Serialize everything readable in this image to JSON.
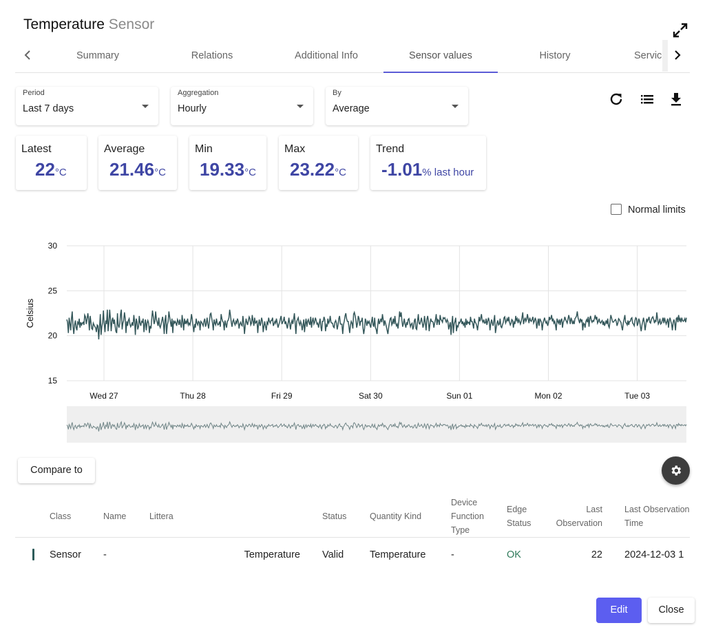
{
  "header": {
    "title": "Temperature",
    "subtitle": "Sensor"
  },
  "icons": {
    "expand": "expand-icon",
    "refresh": "refresh-icon",
    "list": "list-icon",
    "download": "download-icon",
    "settings": "gear-icon",
    "prev": "chevron-left-icon",
    "next": "chevron-right-icon"
  },
  "tabs": [
    {
      "label": "Summary",
      "active": false
    },
    {
      "label": "Relations",
      "active": false
    },
    {
      "label": "Additional Info",
      "active": false
    },
    {
      "label": "Sensor values",
      "active": true
    },
    {
      "label": "History",
      "active": false
    },
    {
      "label": "Service",
      "active": false
    }
  ],
  "filters": {
    "period": {
      "label": "Period",
      "value": "Last 7 days"
    },
    "aggregation": {
      "label": "Aggregation",
      "value": "Hourly"
    },
    "by": {
      "label": "By",
      "value": "Average"
    }
  },
  "stats": [
    {
      "label": "Latest",
      "value": "22",
      "unit": "°C"
    },
    {
      "label": "Average",
      "value": "21.46",
      "unit": "°C"
    },
    {
      "label": "Min",
      "value": "19.33",
      "unit": "°C"
    },
    {
      "label": "Max",
      "value": "23.22",
      "unit": "°C"
    },
    {
      "label": "Trend",
      "value": "-1.01",
      "unit": "% last hour"
    }
  ],
  "normal_limits": {
    "label": "Normal limits",
    "checked": false
  },
  "colors": {
    "accent": "#5c5ef0",
    "stat_value": "#3f46a4",
    "line": "#34575a",
    "ok": "#2f7a5a"
  },
  "chart_data": {
    "type": "line",
    "title": "",
    "xlabel": "",
    "ylabel": "Celsius",
    "ylim": [
      15,
      30
    ],
    "yticks": [
      15,
      20,
      25,
      30
    ],
    "xtick_labels": [
      "Wed 27",
      "Thu 28",
      "Fri 29",
      "Sat 30",
      "Sun 01",
      "Mon 02",
      "Tue 03"
    ],
    "grid": true,
    "series": [
      {
        "values": [
          21.8,
          21.5,
          20.3,
          22.0,
          21.4,
          20.6,
          21.9,
          22.7,
          21.0,
          20.2,
          21.2,
          21.7,
          20.9,
          20.6,
          21.5,
          21.3,
          21.9,
          20.9,
          21.5,
          21.2,
          21.4,
          21.5,
          21.2,
          22.3,
          22.1,
          21.3,
          21.8,
          22.5,
          21.9,
          20.6,
          22.2,
          21.5,
          20.8,
          20.7,
          21.4,
          21.2,
          21.0,
          20.9,
          20.4,
          21.2,
          21.1,
          19.6,
          20.9,
          22.4,
          20.1,
          21.0,
          21.5,
          22.8,
          21.4,
          20.4,
          21.7,
          21.3,
          22.9,
          20.5,
          21.4,
          22.9,
          21.9,
          20.5,
          21.7,
          22.0,
          21.3,
          21.8,
          21.1,
          20.5,
          20.3,
          22.5,
          21.2,
          20.9,
          21.4,
          22.4,
          22.9,
          20.7,
          21.4,
          21.7,
          22.6,
          21.9,
          20.3,
          21.6,
          21.1,
          21.7,
          21.9,
          21.3,
          21.0,
          21.2,
          21.5,
          21.1,
          22.3,
          21.6,
          20.1,
          21.9,
          21.6,
          20.7,
          21.0,
          22.2,
          21.4,
          21.1,
          21.6,
          21.5,
          21.9,
          20.4,
          21.3,
          21.8,
          20.6,
          21.4,
          21.7,
          21.4,
          20.3,
          21.1,
          20.8,
          21.9,
          22.8,
          22.1,
          21.3,
          21.6,
          22.7,
          21.8,
          21.5,
          21.1,
          22.0,
          21.1,
          20.9,
          21.3,
          21.7,
          22.1,
          21.4,
          20.2,
          21.7,
          22.3,
          20.2,
          21.2,
          21.6,
          22.7,
          22.1,
          21.5,
          21.0,
          21.9,
          20.3,
          21.7,
          21.4,
          21.6,
          21.4,
          21.1,
          21.8,
          21.6,
          21.2,
          21.8,
          21.3,
          20.9,
          22.3,
          21.5,
          20.6,
          21.9,
          21.3,
          21.6,
          21.4,
          21.9,
          21.2,
          21.4,
          21.2,
          21.6,
          22.4,
          21.8,
          21.1,
          20.4,
          21.3,
          20.9,
          21.9,
          21.4,
          21.2,
          21.6,
          21.5,
          20.6,
          21.6,
          21.5,
          21.3,
          21.1,
          21.6,
          21.9,
          21.0,
          21.3,
          22.0,
          21.3,
          20.8,
          21.6,
          22.4,
          22.5,
          21.9,
          21.4,
          20.6,
          21.8,
          21.4,
          21.2,
          21.9,
          21.4,
          21.2,
          21.3,
          21.6,
          21.0,
          22.4,
          21.9,
          21.6,
          21.5,
          20.6,
          21.7,
          21.3,
          20.9,
          21.6,
          21.7,
          22.0,
          22.9,
          22.3,
          21.5,
          21.0,
          21.6,
          21.8,
          21.4,
          21.2,
          21.6,
          21.4,
          21.9,
          21.6,
          20.8,
          21.3,
          21.5,
          21.2,
          21.1,
          22.2,
          21.4,
          20.2,
          21.1,
          21.9,
          21.5,
          21.2,
          21.7,
          22.1,
          21.9,
          21.2,
          21.4,
          22.3,
          21.6,
          21.1,
          22.0,
          21.4,
          21.5,
          21.7,
          20.3,
          21.3,
          21.8,
          21.1,
          21.4,
          22.0,
          21.6,
          20.4,
          21.1,
          21.6,
          21.0,
          20.6,
          21.5,
          21.3,
          22.0,
          21.6,
          21.4,
          21.7,
          21.7,
          22.0,
          21.1,
          21.3,
          21.6,
          21.4,
          21.9,
          21.4,
          20.9,
          21.2,
          21.5,
          21.9,
          22.2,
          21.3,
          21.5,
          21.7,
          22.1,
          21.3,
          21.6,
          21.2,
          20.8,
          21.4,
          22.0,
          21.3,
          20.7,
          21.4,
          21.7,
          21.3,
          21.8,
          22.5,
          21.4,
          20.2,
          21.6,
          21.8,
          22.0,
          21.4,
          21.2,
          21.6,
          21.3,
          20.6,
          21.1,
          21.8,
          20.4,
          21.3,
          21.9,
          21.0,
          21.6,
          21.8,
          21.4,
          21.2,
          22.1,
          20.9,
          21.6,
          22.0,
          21.3,
          21.5,
          22.0,
          21.7,
          21.3,
          21.4,
          20.9,
          21.4,
          21.9,
          21.0,
          20.5,
          21.6,
          21.6,
          22.1,
          21.8,
          20.5,
          21.2,
          21.0,
          21.9,
          21.4,
          21.6,
          22.2,
          21.5,
          21.4,
          21.4,
          21.0,
          20.9,
          21.5,
          21.7,
          21.4,
          20.7,
          21.2,
          21.9,
          22.2,
          21.3,
          21.3,
          21.3,
          20.2,
          21.2,
          21.6,
          22.2,
          22.5,
          21.9,
          21.6,
          21.6,
          21.0,
          20.3,
          21.2,
          21.6,
          21.4,
          20.8,
          22.4,
          22.6,
          22.2,
          21.7,
          20.9,
          21.4,
          22.2,
          21.9,
          21.1,
          21.6,
          21.6,
          22.0,
          20.9,
          20.2,
          20.8,
          21.9,
          21.6,
          21.1,
          21.6,
          21.4,
          21.6,
          21.2,
          20.9,
          21.5,
          22.1,
          21.2,
          21.0,
          22.0,
          20.9,
          20.7,
          20.2,
          21.2,
          21.9,
          21.3,
          21.6,
          21.9,
          21.5,
          22.4,
          21.8,
          21.1,
          21.7,
          21.4,
          21.0,
          20.6,
          20.2,
          20.9,
          21.5,
          21.9,
          22.0,
          21.2,
          21.4,
          21.9,
          21.3,
          22.2,
          21.4,
          21.1,
          21.3,
          20.8,
          21.6,
          22.7,
          22.1,
          22.6,
          21.7,
          21.0,
          21.4,
          21.9,
          21.3,
          20.9,
          21.5,
          21.2,
          21.8,
          21.9,
          21.4,
          21.0,
          21.3,
          21.4,
          20.7,
          21.0,
          21.7,
          21.9,
          20.8,
          20.7,
          21.6,
          22.4,
          21.4,
          21.3,
          21.6,
          22.0,
          21.5,
          20.9,
          21.3,
          22.2,
          21.4,
          20.6,
          21.8,
          22.2,
          21.6,
          20.5,
          21.3,
          21.9,
          21.6,
          21.6,
          21.5,
          20.9,
          21.4,
          21.8,
          22.4,
          21.2,
          21.8,
          21.7,
          21.2,
          22.3,
          21.8,
          21.7,
          21.5,
          22.0,
          21.9,
          22.0,
          21.7,
          21.5,
          21.8,
          21.6,
          20.7,
          21.1,
          21.5,
          20.1,
          21.3,
          22.2,
          20.3,
          21.3,
          21.6,
          22.0,
          20.5,
          21.1,
          21.0,
          21.5,
          21.4,
          21.6,
          21.9,
          21.3,
          21.6,
          21.2,
          21.4,
          20.9,
          21.9,
          21.2,
          21.6,
          21.4,
          21.5,
          21.2,
          22.1,
          21.6,
          21.6,
          21.3,
          20.8,
          21.9,
          21.5,
          21.4,
          21.1,
          20.6,
          21.3,
          22.1,
          21.6,
          21.9,
          22.4,
          21.7,
          21.5,
          21.8,
          21.4,
          21.4,
          21.9,
          21.2,
          21.6,
          22.0,
          21.6,
          20.6,
          21.3,
          21.8,
          21.4,
          21.1,
          21.7,
          22.3,
          20.3,
          20.9,
          21.4,
          21.7,
          21.2,
          21.3,
          21.9,
          21.0,
          20.9,
          21.2,
          21.5,
          22.0,
          22.1,
          21.4,
          21.6,
          21.9,
          21.6,
          22.1,
          21.5,
          21.2,
          21.4,
          21.8,
          21.7,
          20.9,
          21.5,
          21.3,
          22.2,
          21.7,
          21.9,
          21.4,
          21.8,
          21.6,
          21.3,
          21.6,
          22.0,
          22.6,
          21.3,
          21.7,
          22.0,
          21.6,
          21.8,
          22.4,
          21.9,
          21.4,
          22.0,
          21.7,
          21.6,
          21.8,
          22.1,
          21.4,
          21.6,
          22.0,
          21.7,
          20.8,
          21.4,
          21.9,
          21.1,
          21.9,
          21.7,
          21.5,
          20.6,
          21.4,
          21.7,
          22.0,
          21.6,
          21.4,
          21.6,
          21.1,
          21.4,
          22.1,
          21.8,
          21.9,
          22.3,
          21.6,
          21.9,
          21.4,
          21.6,
          21.2,
          20.6,
          21.9,
          21.6,
          21.4,
          21.8,
          21.2,
          21.7,
          21.9,
          20.9,
          21.5,
          21.7,
          22.1,
          21.8,
          21.6,
          21.4,
          21.8,
          22.3,
          21.9,
          21.3,
          22.0,
          21.7,
          21.3,
          21.6,
          21.3,
          21.9,
          22.0,
          22.2,
          22.7,
          22.0,
          21.7,
          21.4,
          21.9,
          21.6,
          21.8,
          20.6,
          21.4,
          21.3,
          20.9,
          21.6,
          21.8,
          21.5,
          22.1,
          21.0,
          21.9,
          22.2,
          21.7,
          21.5,
          21.7,
          21.6,
          21.9,
          22.3,
          21.8,
          22.1,
          21.4,
          21.6,
          21.9,
          21.5,
          21.4,
          21.6,
          21.7,
          21.2,
          21.6,
          21.1,
          21.4,
          21.7,
          21.3,
          21.9,
          21.1,
          20.9,
          21.6,
          22.3,
          22.0,
          21.6,
          21.5,
          21.6,
          21.7,
          21.8,
          21.6,
          21.1,
          21.4,
          21.9,
          21.8,
          21.6,
          21.5,
          21.0,
          20.6,
          21.4,
          21.8,
          22.3,
          21.5,
          21.4,
          21.2,
          21.7,
          21.2,
          21.6,
          21.6,
          21.9,
          22.0,
          21.4,
          21.3,
          21.1,
          21.7,
          22.0,
          21.9,
          21.1,
          21.4,
          21.9,
          21.6,
          21.0,
          20.5,
          21.2,
          21.6,
          22.0,
          21.4,
          20.6,
          21.2,
          21.9,
          21.6,
          21.8,
          22.1,
          21.5,
          21.4,
          21.8,
          22.0,
          22.1,
          21.8,
          21.4,
          21.7,
          21.6,
          22.6,
          21.9,
          21.3,
          21.5,
          21.9,
          21.3,
          21.4,
          21.7,
          22.0,
          21.4,
          22.0,
          21.6,
          21.3,
          21.6,
          21.9,
          20.9,
          21.7,
          22.0,
          21.6,
          21.3,
          20.6,
          21.5,
          21.8,
          21.4,
          20.6,
          21.9,
          22.0,
          21.5,
          22.3,
          21.7,
          21.9,
          21.5,
          22.0,
          21.7,
          21.6,
          21.7,
          21.9,
          21.5,
          22.0
        ]
      }
    ]
  },
  "compare_label": "Compare to",
  "table": {
    "columns": [
      "Class",
      "Name",
      "Littera",
      "Status",
      "Quantity Kind",
      "Device Function Type",
      "Edge Status",
      "Last Observation",
      "Last Observation Time"
    ],
    "row": {
      "class": "Sensor",
      "name": "-",
      "littera": "Temperature",
      "status": "Valid",
      "quantity_kind": "Temperature",
      "device_function_type": "-",
      "edge_status": "OK",
      "last_observation": "22",
      "last_observation_time": "2024-12-03 1"
    }
  },
  "buttons": {
    "edit": "Edit",
    "close": "Close"
  }
}
